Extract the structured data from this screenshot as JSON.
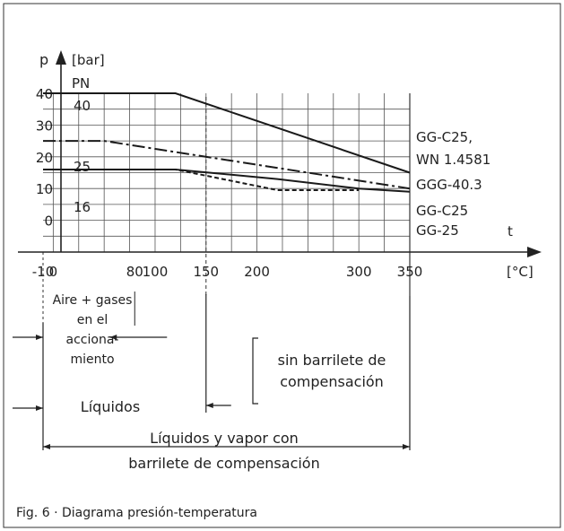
{
  "caption": "Fig. 6 · Diagrama presión-temperatura",
  "chart_data": {
    "type": "line",
    "title": "",
    "ylabel": "p",
    "yunit": "[bar]",
    "xlabel": "t",
    "xunit": "[°C]",
    "pn_label": "PN",
    "xlim": [
      -10,
      350
    ],
    "ylim": [
      -10,
      40
    ],
    "x_tick_labels": [
      "-10",
      "0",
      "80",
      "100",
      "150",
      "200",
      "300",
      "350"
    ],
    "x_tick_values": [
      -10,
      0,
      80,
      100,
      150,
      200,
      300,
      350
    ],
    "y_tick_labels": [
      "40",
      "30",
      "20",
      "10",
      "0"
    ],
    "y_tick_values": [
      40,
      30,
      20,
      10,
      0
    ],
    "pn_values": [
      "40",
      "25",
      "16"
    ],
    "series": [
      {
        "name": "GG-C25, WN 1.4581",
        "labels": [
          "GG-C25,",
          "WN 1.4581"
        ],
        "line": "solid",
        "x": [
          -10,
          120,
          350
        ],
        "y": [
          40,
          40,
          15
        ]
      },
      {
        "name": "GGG-40.3",
        "labels": [
          "GGG-40.3"
        ],
        "line": "dashdot",
        "x": [
          -10,
          50,
          350
        ],
        "y": [
          25,
          25,
          10
        ]
      },
      {
        "name": "GG-C25",
        "labels": [
          "GG-C25"
        ],
        "line": "solid",
        "x": [
          -10,
          120,
          220,
          300,
          350
        ],
        "y": [
          16,
          16,
          13,
          10,
          9
        ]
      },
      {
        "name": "GG-25",
        "labels": [
          "GG-25"
        ],
        "line": "dashed",
        "x": [
          -10,
          120,
          220,
          240,
          300
        ],
        "y": [
          16,
          16,
          9.5,
          9.5,
          9.5
        ]
      }
    ],
    "ranges": [
      {
        "lines": [
          "Aire + gases",
          "en el",
          "acciona-",
          "miento"
        ],
        "x": [
          -10,
          80
        ],
        "style": "open"
      },
      {
        "lines": [
          "Líquidos"
        ],
        "x": [
          -10,
          350
        ],
        "style": "left-only"
      },
      {
        "lines": [
          "sin barrilete de",
          "compensación"
        ],
        "x": [
          150,
          350
        ],
        "style": "bracket"
      },
      {
        "lines": [
          "Líquidos y vapor con",
          "barrilete de compensación"
        ],
        "x": [
          -10,
          350
        ],
        "style": "closed"
      }
    ],
    "grid": true,
    "legend": "none"
  }
}
